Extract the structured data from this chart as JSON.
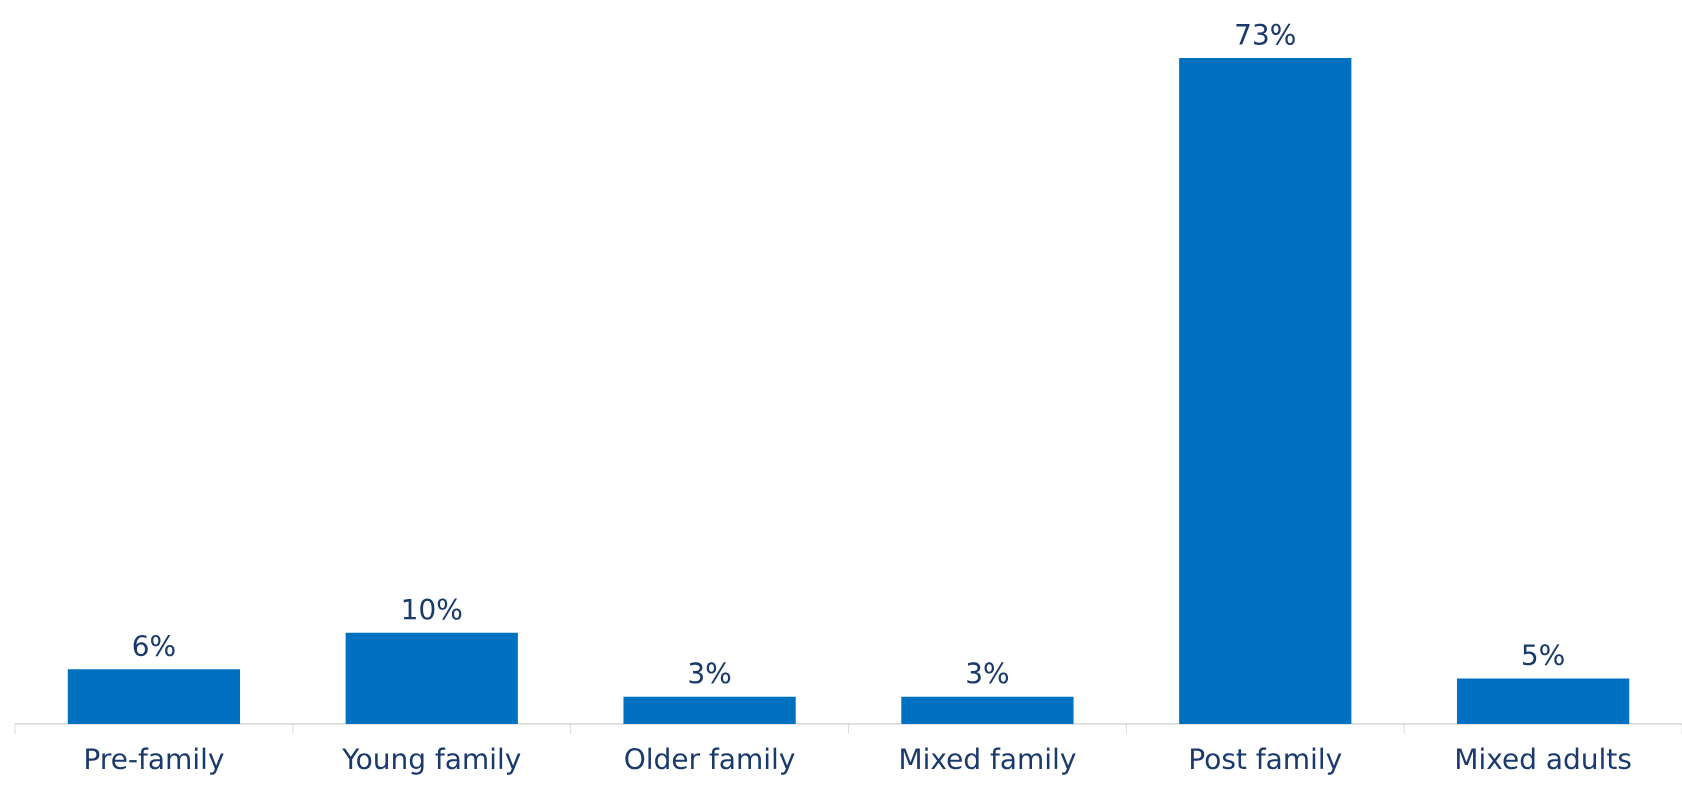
{
  "chart_data": {
    "type": "bar",
    "categories": [
      "Pre-family",
      "Young family",
      "Older family",
      "Mixed family",
      "Post family",
      "Mixed adults"
    ],
    "values": [
      6,
      10,
      3,
      3,
      73,
      5
    ],
    "color": "#0070c0",
    "value_labels": [
      "6%",
      "10%",
      "3%",
      "3%",
      "73%",
      "5%"
    ]
  }
}
